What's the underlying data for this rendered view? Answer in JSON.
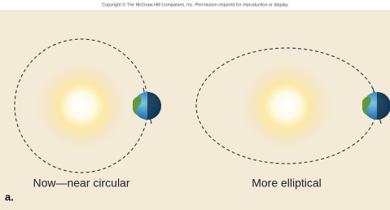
{
  "copyright": "Copyright © The McGraw-Hill Companies, Inc. Permission required for reproduction or display.",
  "panel_label": "a.",
  "orbits": [
    {
      "label": "Now—near circular"
    },
    {
      "label": "More elliptical"
    }
  ]
}
